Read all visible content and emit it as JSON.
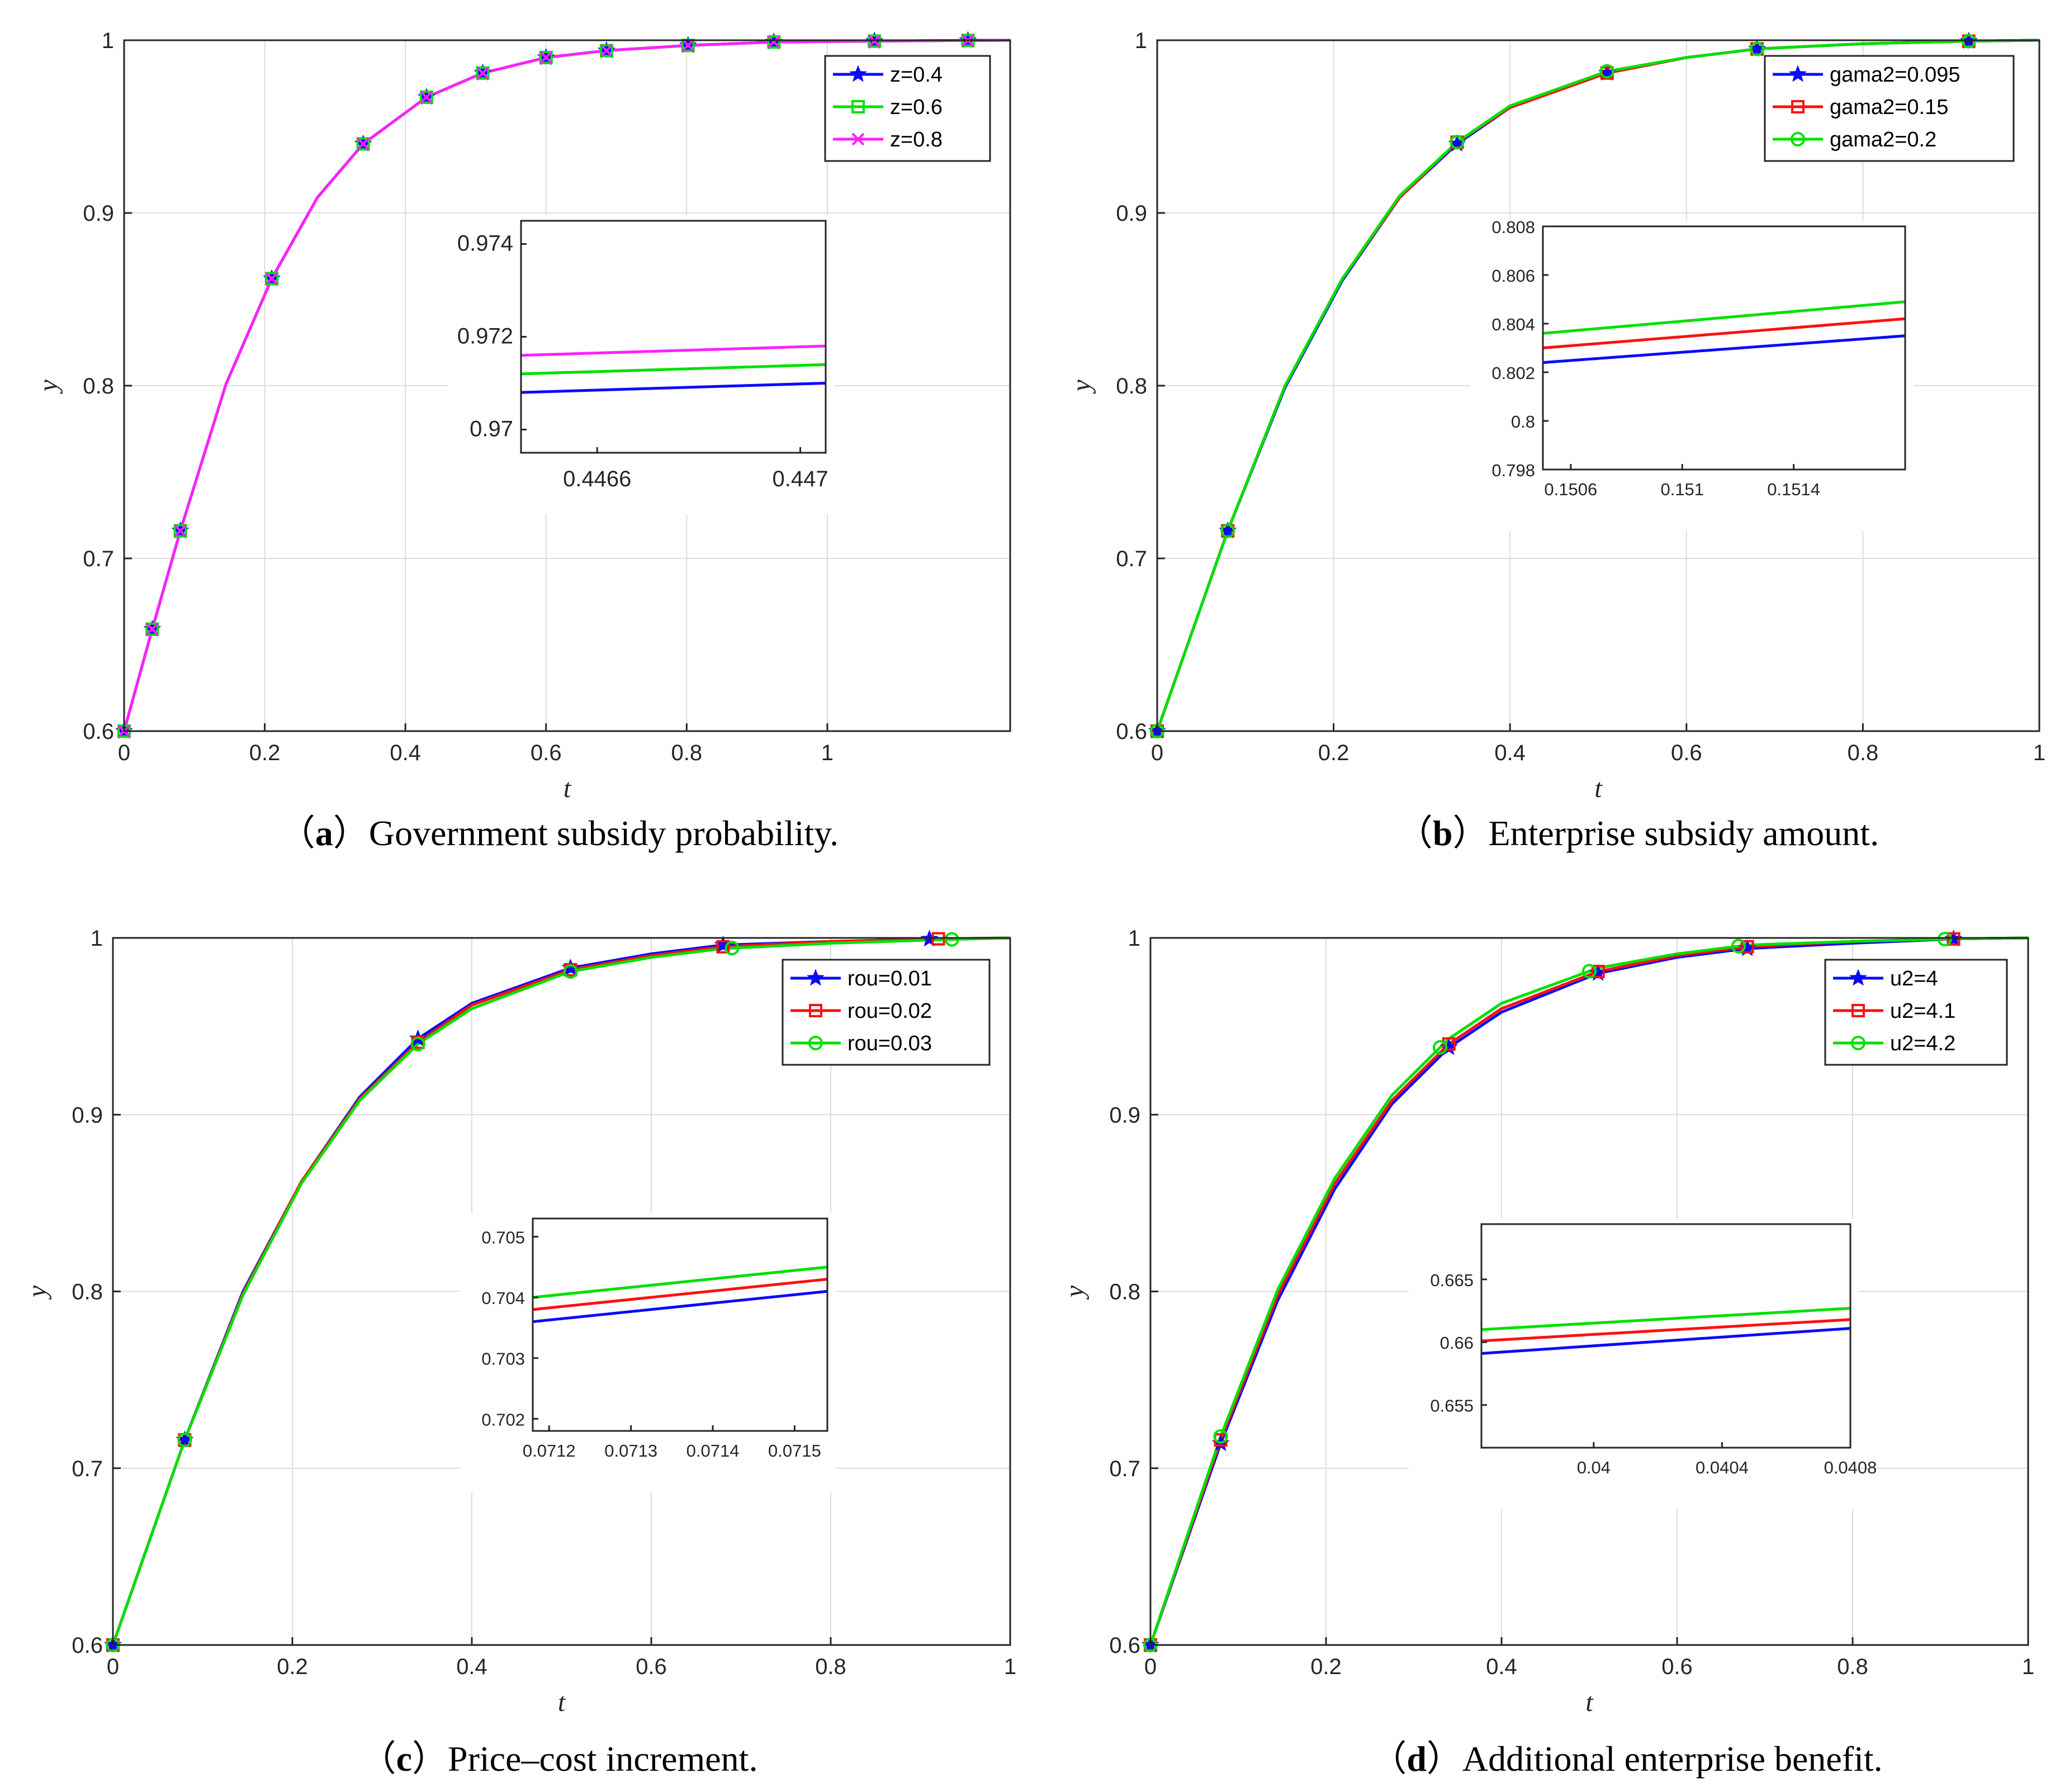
{
  "chart_data": [
    {
      "id": "a",
      "type": "line",
      "caption_letter": "a",
      "caption_text": "Government subsidy probability.",
      "xlabel": "t",
      "ylabel": "y",
      "xlim": [
        0,
        1.26
      ],
      "ylim": [
        0.6,
        1.0
      ],
      "xticks": [
        0,
        0.2,
        0.4,
        0.6,
        0.8,
        1
      ],
      "xtick_labels": [
        "0",
        "0.2",
        "0.4",
        "0.6",
        "0.8",
        "1"
      ],
      "yticks": [
        0.6,
        0.7,
        0.8,
        0.9,
        1.0
      ],
      "ytick_labels": [
        "0.6",
        "0.7",
        "0.8",
        "0.9",
        "1"
      ],
      "x": [
        0,
        0.04,
        0.08,
        0.145,
        0.21,
        0.275,
        0.34,
        0.43,
        0.51,
        0.6,
        0.686,
        0.802,
        0.924,
        1.067,
        1.2,
        1.26
      ],
      "series": [
        {
          "name": "z=0.4",
          "color": "#0a0aff",
          "marker": "star",
          "marker_x": [
            0,
            0.04,
            0.08,
            0.21,
            0.34,
            0.43,
            0.51,
            0.6,
            0.686,
            0.802,
            0.924,
            1.067,
            1.2
          ],
          "values": [
            0.6,
            0.659,
            0.716,
            0.801,
            0.862,
            0.909,
            0.94,
            0.967,
            0.981,
            0.99,
            0.994,
            0.997,
            0.999,
            0.9995,
            0.9999,
            1.0
          ]
        },
        {
          "name": "z=0.6",
          "color": "#00e000",
          "marker": "square",
          "marker_x": [
            0,
            0.04,
            0.08,
            0.21,
            0.34,
            0.43,
            0.51,
            0.6,
            0.686,
            0.802,
            0.924,
            1.067,
            1.2
          ],
          "values": [
            0.6,
            0.659,
            0.716,
            0.801,
            0.862,
            0.909,
            0.94,
            0.967,
            0.981,
            0.99,
            0.994,
            0.997,
            0.999,
            0.9995,
            0.9999,
            1.0
          ]
        },
        {
          "name": "z=0.8",
          "color": "#ff20ff",
          "marker": "cross",
          "marker_x": [
            0,
            0.04,
            0.08,
            0.21,
            0.34,
            0.43,
            0.51,
            0.6,
            0.686,
            0.802,
            0.924,
            1.067,
            1.2
          ],
          "values": [
            0.6,
            0.659,
            0.716,
            0.801,
            0.862,
            0.909,
            0.94,
            0.967,
            0.981,
            0.99,
            0.994,
            0.997,
            0.999,
            0.9995,
            0.9999,
            1.0
          ]
        }
      ],
      "legend_position": "top-right",
      "inset": {
        "xlim": [
          0.44645,
          0.44705
        ],
        "ylim": [
          0.9695,
          0.9745
        ],
        "xticks": [
          0.4466,
          0.447
        ],
        "xtick_labels": [
          "0.4466",
          "0.447"
        ],
        "yticks": [
          0.97,
          0.972,
          0.974
        ],
        "ytick_labels": [
          "0.97",
          "0.972",
          "0.974"
        ],
        "label_size": "large",
        "lines": [
          {
            "color": "#0a0aff",
            "y": [
              0.9708,
              0.971
            ]
          },
          {
            "color": "#00e000",
            "y": [
              0.9712,
              0.9714
            ]
          },
          {
            "color": "#ff20ff",
            "y": [
              0.9716,
              0.9718
            ]
          }
        ]
      }
    },
    {
      "id": "b",
      "type": "line",
      "caption_letter": "b",
      "caption_text": "Enterprise subsidy amount.",
      "xlabel": "t",
      "ylabel": "y",
      "xlim": [
        0,
        1.0
      ],
      "ylim": [
        0.6,
        1.0
      ],
      "xticks": [
        0,
        0.2,
        0.4,
        0.6,
        0.8,
        1
      ],
      "xtick_labels": [
        "0",
        "0.2",
        "0.4",
        "0.6",
        "0.8",
        "1"
      ],
      "yticks": [
        0.6,
        0.7,
        0.8,
        0.9,
        1.0
      ],
      "ytick_labels": [
        "0.6",
        "0.7",
        "0.8",
        "0.9",
        "1"
      ],
      "x": [
        0,
        0.08,
        0.145,
        0.21,
        0.275,
        0.34,
        0.4,
        0.51,
        0.6,
        0.68,
        0.8,
        0.92,
        1.0
      ],
      "series": [
        {
          "name": "gama2=0.095",
          "color": "#0a0aff",
          "marker": "star",
          "marker_x": [
            0,
            0.08,
            0.34,
            0.51,
            0.68,
            0.92
          ],
          "values": [
            0.6,
            0.716,
            0.799,
            0.861,
            0.909,
            0.94,
            0.961,
            0.981,
            0.99,
            0.995,
            0.998,
            0.9995,
            1.0
          ]
        },
        {
          "name": "gama2=0.15",
          "color": "#ff1010",
          "marker": "square",
          "marker_x": [
            0,
            0.08,
            0.34,
            0.51,
            0.68,
            0.92
          ],
          "values": [
            0.6,
            0.716,
            0.8,
            0.862,
            0.909,
            0.941,
            0.961,
            0.981,
            0.99,
            0.995,
            0.998,
            0.9995,
            1.0
          ]
        },
        {
          "name": "gama2=0.2",
          "color": "#00e000",
          "marker": "circle",
          "marker_x": [
            0,
            0.08,
            0.34,
            0.51,
            0.68,
            0.92
          ],
          "values": [
            0.6,
            0.716,
            0.8,
            0.862,
            0.91,
            0.941,
            0.962,
            0.982,
            0.99,
            0.995,
            0.998,
            0.9995,
            1.0
          ]
        }
      ],
      "legend_position": "top-right",
      "inset": {
        "xlim": [
          0.1505,
          0.1518
        ],
        "ylim": [
          0.798,
          0.808
        ],
        "xticks": [
          0.1506,
          0.151,
          0.1514
        ],
        "xtick_labels": [
          "0.1506",
          "0.151",
          "0.1514"
        ],
        "yticks": [
          0.798,
          0.8,
          0.802,
          0.804,
          0.806,
          0.808
        ],
        "ytick_labels": [
          "0.798",
          "0.8",
          "0.802",
          "0.804",
          "0.806",
          "0.808"
        ],
        "label_size": "small",
        "lines": [
          {
            "color": "#0a0aff",
            "y": [
              0.8024,
              0.8035
            ]
          },
          {
            "color": "#ff1010",
            "y": [
              0.803,
              0.8042
            ]
          },
          {
            "color": "#00e000",
            "y": [
              0.8036,
              0.8049
            ]
          }
        ]
      }
    },
    {
      "id": "c",
      "type": "line",
      "caption_letter": "c",
      "caption_text": "Price–cost increment.",
      "xlabel": "t",
      "ylabel": "y",
      "xlim": [
        0,
        1.0
      ],
      "ylim": [
        0.6,
        1.0
      ],
      "xticks": [
        0,
        0.2,
        0.4,
        0.6,
        0.8,
        1
      ],
      "xtick_labels": [
        "0",
        "0.2",
        "0.4",
        "0.6",
        "0.8",
        "1"
      ],
      "yticks": [
        0.6,
        0.7,
        0.8,
        0.9,
        1.0
      ],
      "ytick_labels": [
        "0.6",
        "0.7",
        "0.8",
        "0.9",
        "1"
      ],
      "x": [
        0,
        0.08,
        0.145,
        0.21,
        0.275,
        0.34,
        0.4,
        0.51,
        0.6,
        0.68,
        0.8,
        0.92,
        1.0
      ],
      "series": [
        {
          "name": "rou=0.01",
          "color": "#0a0aff",
          "marker": "star",
          "marker_x": [
            0,
            0.08,
            0.34,
            0.51,
            0.68,
            0.91
          ],
          "values": [
            0.6,
            0.716,
            0.8,
            0.862,
            0.91,
            0.943,
            0.963,
            0.983,
            0.991,
            0.996,
            0.998,
            0.9995,
            1.0
          ]
        },
        {
          "name": "rou=0.02",
          "color": "#ff1010",
          "marker": "square",
          "marker_x": [
            0,
            0.08,
            0.34,
            0.51,
            0.68,
            0.92
          ],
          "values": [
            0.6,
            0.716,
            0.799,
            0.862,
            0.909,
            0.941,
            0.962,
            0.982,
            0.99,
            0.995,
            0.998,
            0.9995,
            1.0
          ]
        },
        {
          "name": "rou=0.03",
          "color": "#00e000",
          "marker": "circle",
          "marker_x": [
            0,
            0.08,
            0.34,
            0.51,
            0.69,
            0.935
          ],
          "values": [
            0.6,
            0.716,
            0.798,
            0.861,
            0.908,
            0.94,
            0.96,
            0.981,
            0.989,
            0.994,
            0.997,
            0.999,
            1.0
          ]
        }
      ],
      "legend_position": "top-right",
      "inset": {
        "xlim": [
          0.07118,
          0.07154
        ],
        "ylim": [
          0.7018,
          0.7053
        ],
        "xticks": [
          0.0712,
          0.0713,
          0.0714,
          0.0715
        ],
        "xtick_labels": [
          "0.0712",
          "0.0713",
          "0.0714",
          "0.0715"
        ],
        "yticks": [
          0.702,
          0.703,
          0.704,
          0.705
        ],
        "ytick_labels": [
          "0.702",
          "0.703",
          "0.704",
          "0.705"
        ],
        "label_size": "small",
        "lines": [
          {
            "color": "#0a0aff",
            "y": [
              0.7036,
              0.7041
            ]
          },
          {
            "color": "#ff1010",
            "y": [
              0.7038,
              0.7043
            ]
          },
          {
            "color": "#00e000",
            "y": [
              0.704,
              0.7045
            ]
          }
        ]
      }
    },
    {
      "id": "d",
      "type": "line",
      "caption_letter": "d",
      "caption_text": "Additional enterprise benefit.",
      "xlabel": "t",
      "ylabel": "y",
      "xlim": [
        0,
        1.0
      ],
      "ylim": [
        0.6,
        1.0
      ],
      "xticks": [
        0,
        0.2,
        0.4,
        0.6,
        0.8,
        1
      ],
      "xtick_labels": [
        "0",
        "0.2",
        "0.4",
        "0.6",
        "0.8",
        "1"
      ],
      "yticks": [
        0.6,
        0.7,
        0.8,
        0.9,
        1.0
      ],
      "ytick_labels": [
        "0.6",
        "0.7",
        "0.8",
        "0.9",
        "1"
      ],
      "x": [
        0,
        0.08,
        0.145,
        0.21,
        0.275,
        0.34,
        0.4,
        0.51,
        0.6,
        0.68,
        0.8,
        0.92,
        1.0
      ],
      "series": [
        {
          "name": "u2=4",
          "color": "#0a0aff",
          "marker": "star",
          "marker_x": [
            0,
            0.08,
            0.34,
            0.51,
            0.68,
            0.915
          ],
          "values": [
            0.6,
            0.714,
            0.795,
            0.858,
            0.906,
            0.938,
            0.958,
            0.98,
            0.989,
            0.994,
            0.997,
            0.9995,
            1.0
          ]
        },
        {
          "name": "u2=4.1",
          "color": "#ff1010",
          "marker": "square",
          "marker_x": [
            0,
            0.08,
            0.34,
            0.51,
            0.68,
            0.915
          ],
          "values": [
            0.6,
            0.716,
            0.798,
            0.861,
            0.908,
            0.94,
            0.96,
            0.981,
            0.99,
            0.995,
            0.998,
            0.9995,
            1.0
          ]
        },
        {
          "name": "u2=4.2",
          "color": "#00e000",
          "marker": "circle",
          "marker_x": [
            0,
            0.08,
            0.33,
            0.5,
            0.67,
            0.905
          ],
          "values": [
            0.6,
            0.718,
            0.801,
            0.864,
            0.911,
            0.943,
            0.963,
            0.983,
            0.991,
            0.996,
            0.998,
            0.9995,
            1.0
          ]
        }
      ],
      "legend_position": "top-right",
      "inset": {
        "xlim": [
          0.03965,
          0.0408
        ],
        "ylim": [
          0.6516,
          0.6694
        ],
        "xticks": [
          0.04,
          0.0404,
          0.0408
        ],
        "xtick_labels": [
          "0.04",
          "0.0404",
          "0.0408"
        ],
        "yticks": [
          0.655,
          0.66,
          0.665
        ],
        "ytick_labels": [
          "0.655",
          "0.66",
          "0.665"
        ],
        "label_size": "small",
        "lines": [
          {
            "color": "#0a0aff",
            "y": [
              0.6591,
              0.6611
            ]
          },
          {
            "color": "#ff1010",
            "y": [
              0.6601,
              0.6618
            ]
          },
          {
            "color": "#00e000",
            "y": [
              0.661,
              0.6627
            ]
          }
        ]
      }
    }
  ]
}
